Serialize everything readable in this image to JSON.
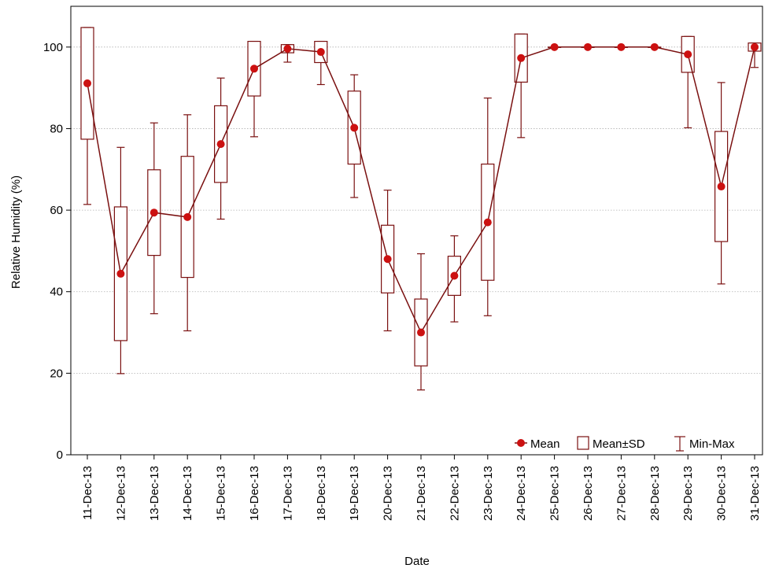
{
  "chart_data": {
    "type": "box",
    "xlabel": "Date",
    "ylabel": "Relative Humidity (%)",
    "ylim": [
      0,
      110
    ],
    "yticks": [
      0,
      20,
      40,
      60,
      80,
      100
    ],
    "grid": "horizontal-dotted",
    "legend": {
      "placement": "bottom-right",
      "entries": [
        "Mean",
        "Mean±SD",
        "Min-Max"
      ]
    },
    "colors": {
      "marker": "#cc1111",
      "box": "#7a1010",
      "grid": "#b0b0b0"
    },
    "categories": [
      "11-Dec-13",
      "12-Dec-13",
      "13-Dec-13",
      "14-Dec-13",
      "15-Dec-13",
      "16-Dec-13",
      "17-Dec-13",
      "18-Dec-13",
      "19-Dec-13",
      "20-Dec-13",
      "21-Dec-13",
      "22-Dec-13",
      "23-Dec-13",
      "24-Dec-13",
      "25-Dec-13",
      "26-Dec-13",
      "27-Dec-13",
      "28-Dec-13",
      "29-Dec-13",
      "30-Dec-13",
      "31-Dec-13"
    ],
    "mean": [
      91.1,
      44.4,
      59.4,
      58.3,
      76.2,
      94.7,
      99.6,
      98.8,
      80.2,
      48.0,
      30.0,
      43.9,
      57.0,
      97.3,
      100.0,
      100.0,
      100.0,
      100.0,
      98.2,
      65.8,
      100.0
    ],
    "sd_low": [
      77.4,
      28.0,
      48.9,
      43.5,
      66.8,
      88.0,
      98.6,
      96.2,
      71.3,
      39.7,
      21.8,
      39.1,
      42.8,
      91.4,
      100.0,
      100.0,
      100.0,
      100.0,
      93.8,
      52.3,
      99.0
    ],
    "sd_high": [
      104.8,
      60.8,
      69.9,
      73.2,
      85.6,
      101.4,
      100.6,
      101.4,
      89.2,
      56.3,
      38.2,
      48.7,
      71.3,
      103.2,
      100.0,
      100.0,
      100.0,
      100.0,
      102.6,
      79.3,
      101.0
    ],
    "min": [
      61.4,
      19.9,
      34.6,
      30.4,
      57.8,
      78.0,
      96.3,
      90.8,
      63.1,
      30.4,
      15.9,
      32.6,
      34.1,
      77.8,
      100.0,
      100.0,
      100.0,
      100.0,
      80.2,
      41.9,
      95.0
    ],
    "max": [
      104.8,
      75.4,
      81.4,
      83.4,
      92.4,
      101.4,
      100.6,
      101.4,
      93.2,
      64.9,
      49.3,
      53.7,
      87.5,
      103.2,
      100.0,
      100.0,
      100.0,
      100.0,
      102.6,
      91.3,
      101.0
    ]
  }
}
